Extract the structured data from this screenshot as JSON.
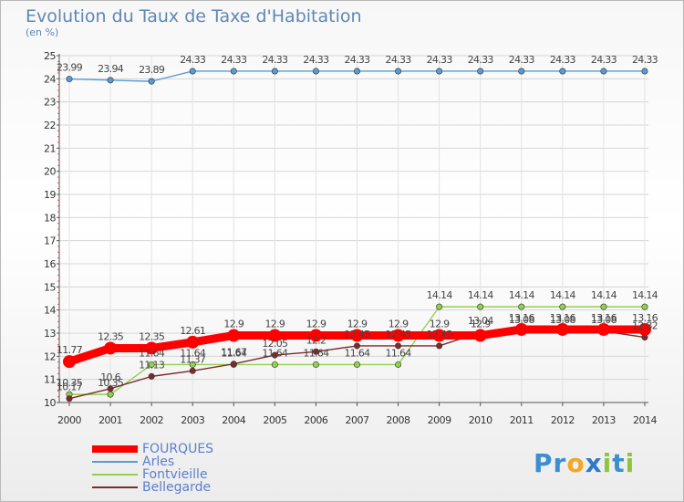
{
  "chart_data": {
    "type": "line",
    "title": "Evolution du Taux de Taxe d'Habitation",
    "unit_label": "(en %)",
    "x": [
      "2000",
      "2001",
      "2002",
      "2003",
      "2004",
      "2005",
      "2006",
      "2007",
      "2008",
      "2009",
      "2010",
      "2011",
      "2012",
      "2013",
      "2014"
    ],
    "ylim": [
      10,
      25
    ],
    "yticks": [
      10,
      11,
      12,
      13,
      14,
      15,
      16,
      17,
      18,
      19,
      20,
      21,
      22,
      23,
      24,
      25
    ],
    "grid": true,
    "legend_position": "bottom-left",
    "series": [
      {
        "name": "FOURQUES",
        "color": "#ff0000",
        "thick": true,
        "values": [
          11.77,
          12.35,
          12.35,
          12.61,
          12.9,
          12.9,
          12.9,
          12.9,
          12.9,
          12.9,
          12.9,
          13.16,
          13.16,
          13.16,
          13.16
        ],
        "labels": [
          "11.77",
          "12.35",
          "12.35",
          "12.61",
          "12.9",
          "12.9",
          "12.9",
          "12.9",
          "12.9",
          "12.9",
          "12.9",
          "13.16",
          "13.16",
          "13.16",
          "13.16"
        ]
      },
      {
        "name": "Arles",
        "color": "#5b9bd5",
        "thick": false,
        "values": [
          23.99,
          23.94,
          23.89,
          24.33,
          24.33,
          24.33,
          24.33,
          24.33,
          24.33,
          24.33,
          24.33,
          24.33,
          24.33,
          24.33,
          24.33
        ],
        "labels": [
          "23.99",
          "23.94",
          "23.89",
          "24.33",
          "24.33",
          "24.33",
          "24.33",
          "24.33",
          "24.33",
          "24.33",
          "24.33",
          "24.33",
          "24.33",
          "24.33",
          "24.33"
        ]
      },
      {
        "name": "Fontvieille",
        "color": "#92d050",
        "thick": false,
        "values": [
          10.35,
          10.35,
          11.64,
          11.64,
          11.64,
          11.64,
          11.64,
          11.64,
          11.64,
          14.14,
          14.14,
          14.14,
          14.14,
          14.14,
          14.14
        ],
        "labels": [
          "10.35",
          "10.35",
          "11.64",
          "11.64",
          "11.64",
          "11.64",
          "11.64",
          "11.64",
          "11.64",
          "14.14",
          "14.14",
          "14.14",
          "14.14",
          "14.14",
          "14.14"
        ]
      },
      {
        "name": "Bellegarde",
        "color": "#7b2b2b",
        "thick": false,
        "values": [
          10.17,
          10.6,
          11.13,
          11.37,
          11.67,
          12.05,
          12.2,
          12.45,
          12.45,
          12.45,
          13.04,
          13.08,
          13.08,
          13.08,
          12.82
        ],
        "labels": [
          "10.17",
          "10.6",
          "11.13",
          "11.37",
          "11.67",
          "12.05",
          "12.2",
          "12.45",
          "12.45",
          "12.45",
          "13.04",
          "13.08",
          "13.08",
          "13.08",
          "12.82"
        ]
      }
    ]
  },
  "brand": {
    "p": "Pr",
    "o": "o",
    "x": "x",
    "i": "i",
    "t": "t",
    "i2": "i"
  }
}
